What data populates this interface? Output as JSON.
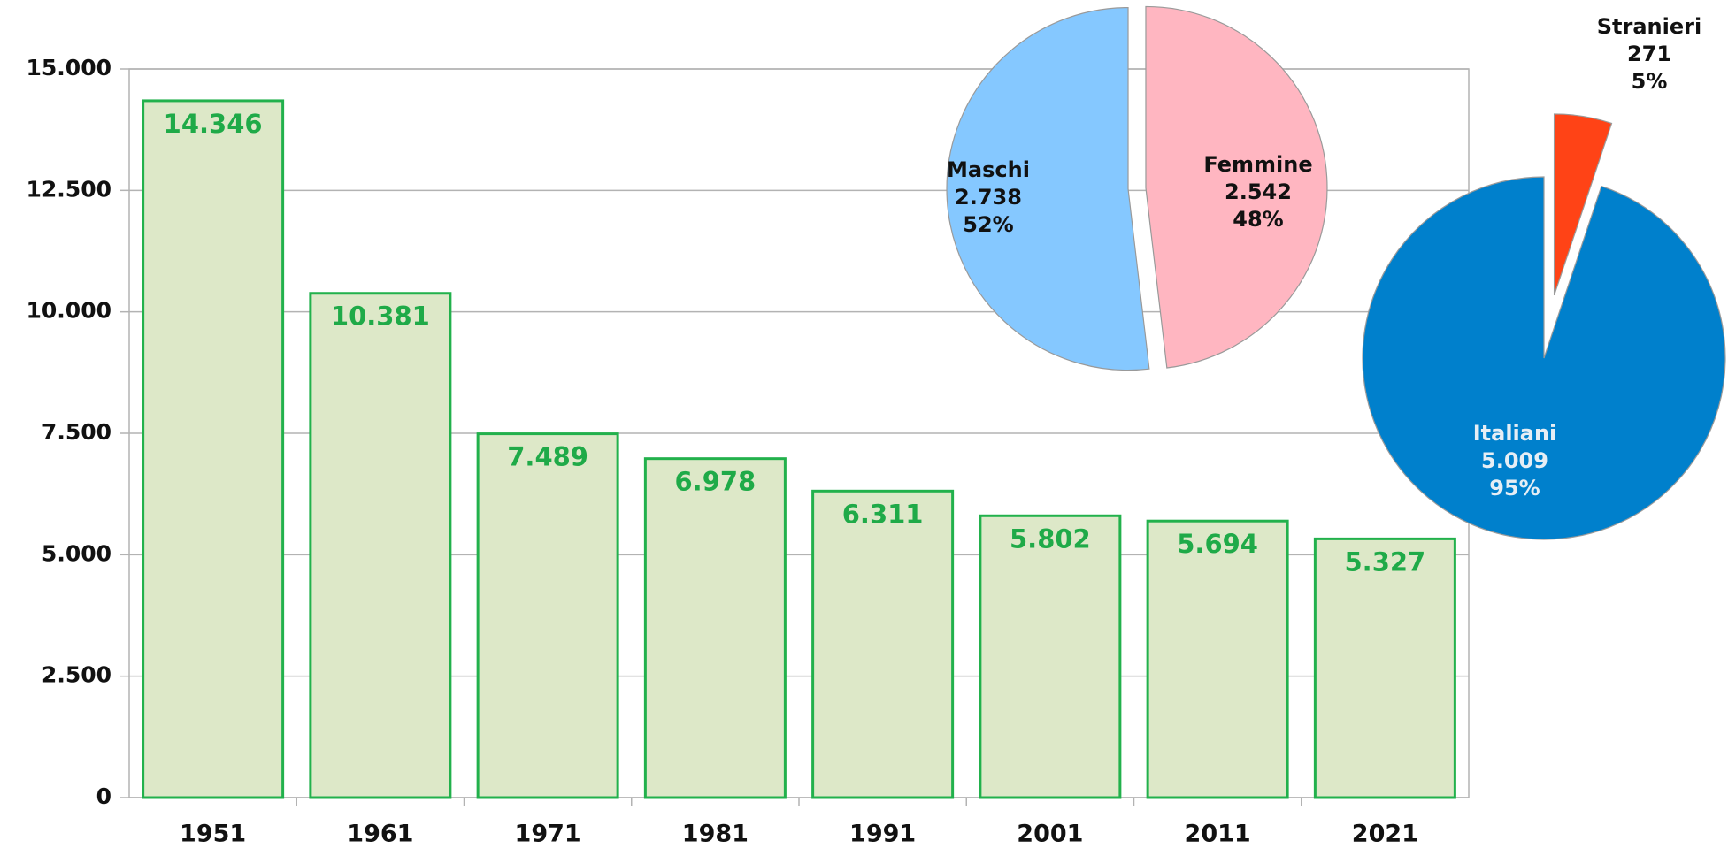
{
  "chart_data": [
    {
      "type": "bar",
      "categories": [
        "1951",
        "1961",
        "1971",
        "1981",
        "1991",
        "2001",
        "2011",
        "2021"
      ],
      "values": [
        14346,
        10381,
        7489,
        6978,
        6311,
        5802,
        5694,
        5327
      ],
      "value_labels": [
        "14.346",
        "10.381",
        "7.489",
        "6.978",
        "6.311",
        "5.802",
        "5.694",
        "5.327"
      ],
      "color": "#dde8c8",
      "edge_color": "#22b14c",
      "label_color": "#1faa48",
      "ylim": [
        0,
        15000
      ],
      "yticks": [
        0,
        {
          "value": 2500,
          "label": "2.500"
        },
        {
          "value": 5000,
          "label": "5.000"
        },
        {
          "value": 7500,
          "label": "7.500"
        },
        {
          "value": 10000,
          "label": "10.000"
        },
        {
          "value": 12500,
          "label": "12.500"
        },
        {
          "value": 15000,
          "label": "15.000"
        }
      ],
      "grid": true
    },
    {
      "type": "pie",
      "categories": [
        "Femmine",
        "Maschi"
      ],
      "values": [
        2542,
        2738
      ],
      "value_labels": [
        "2.542",
        "2.738"
      ],
      "percent_labels": [
        "48%",
        "52%"
      ],
      "colors": [
        "#ffb6c1",
        "#85c8ff"
      ]
    },
    {
      "type": "pie",
      "categories": [
        "Stranieri",
        "Italiani"
      ],
      "values": [
        271,
        5009
      ],
      "value_labels": [
        "271",
        "5.009"
      ],
      "percent_labels": [
        "5%",
        "95%"
      ],
      "colors": [
        "#ff4316",
        "#0080cc"
      ]
    }
  ]
}
